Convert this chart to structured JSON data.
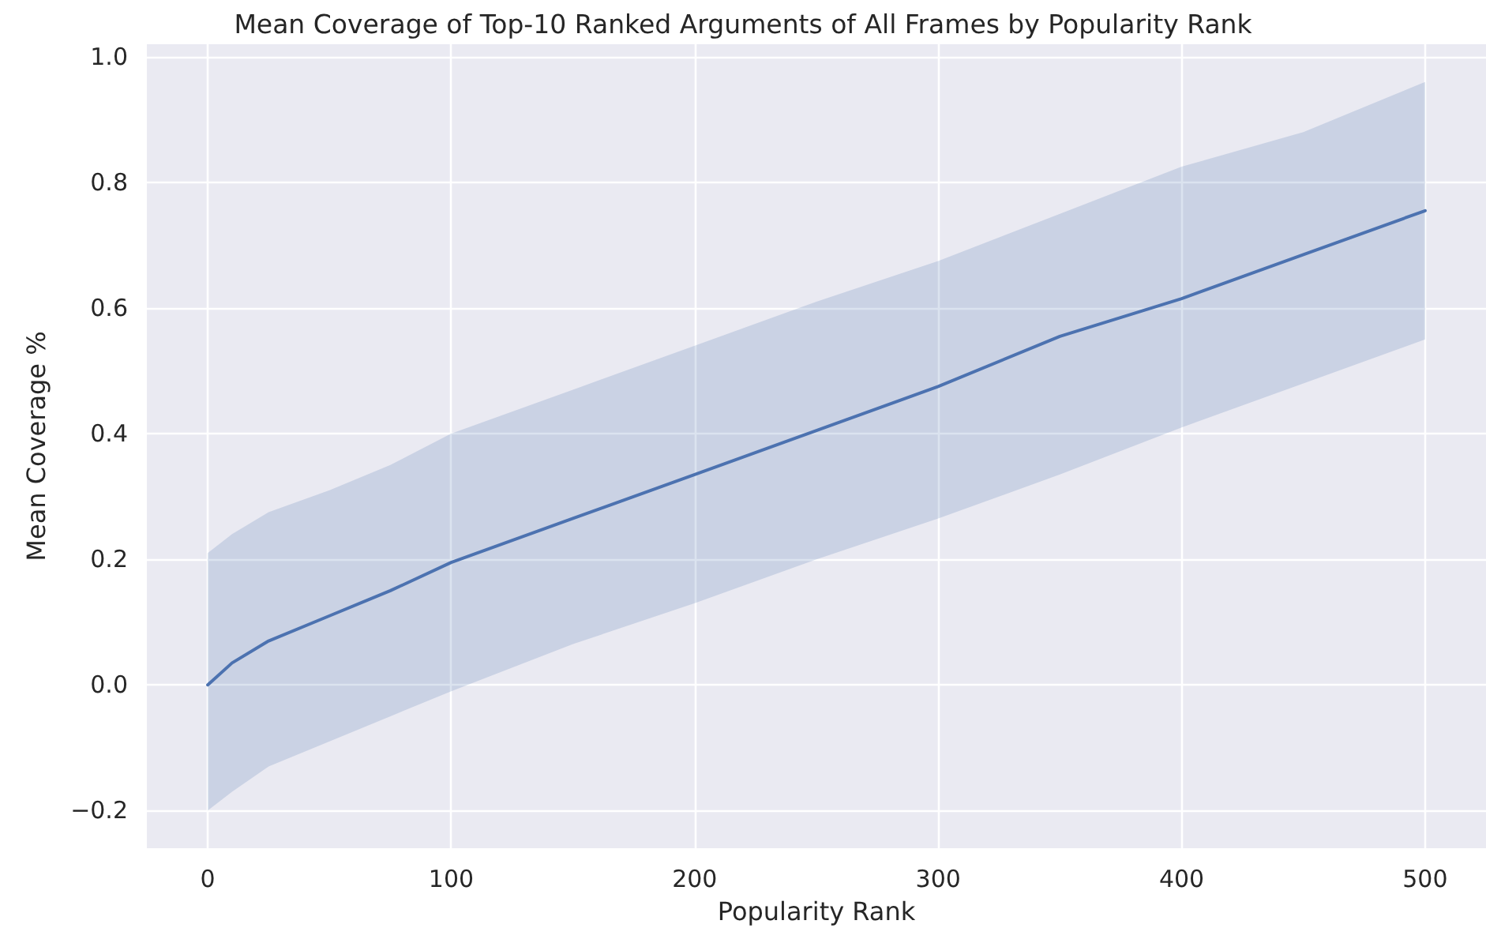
{
  "chart_data": {
    "type": "line",
    "title": "Mean Coverage of Top-10 Ranked Arguments of All Frames by Popularity Rank",
    "xlabel": "Popularity Rank",
    "ylabel": "Mean Coverage %",
    "x": [
      0,
      10,
      25,
      50,
      75,
      100,
      150,
      200,
      250,
      300,
      350,
      400,
      450,
      500
    ],
    "series": [
      {
        "color": "#4c72b0",
        "values": [
          0.0,
          0.035,
          0.07,
          0.11,
          0.15,
          0.195,
          0.265,
          0.335,
          0.405,
          0.475,
          0.555,
          0.615,
          0.685,
          0.755
        ],
        "upper": [
          0.21,
          0.24,
          0.275,
          0.31,
          0.35,
          0.4,
          0.47,
          0.54,
          0.61,
          0.675,
          0.75,
          0.825,
          0.88,
          0.96
        ],
        "lower": [
          -0.2,
          -0.17,
          -0.13,
          -0.09,
          -0.05,
          -0.01,
          0.065,
          0.13,
          0.2,
          0.265,
          0.335,
          0.41,
          0.48,
          0.55
        ]
      }
    ],
    "xlim": [
      -25,
      525
    ],
    "ylim": [
      -0.26,
      1.02
    ],
    "xticks": [
      0,
      100,
      200,
      300,
      400,
      500
    ],
    "yticks": [
      {
        "value": -0.2,
        "label": "−0.2"
      },
      {
        "value": 0,
        "label": "0.0"
      },
      {
        "value": 0.2,
        "label": "0.2"
      },
      {
        "value": 0.4,
        "label": "0.4"
      },
      {
        "value": 0.6,
        "label": "0.6"
      },
      {
        "value": 0.8,
        "label": "0.8"
      },
      {
        "value": 1.0,
        "label": "1.0"
      }
    ],
    "grid": true,
    "marker": "none",
    "line_style": "solid"
  }
}
